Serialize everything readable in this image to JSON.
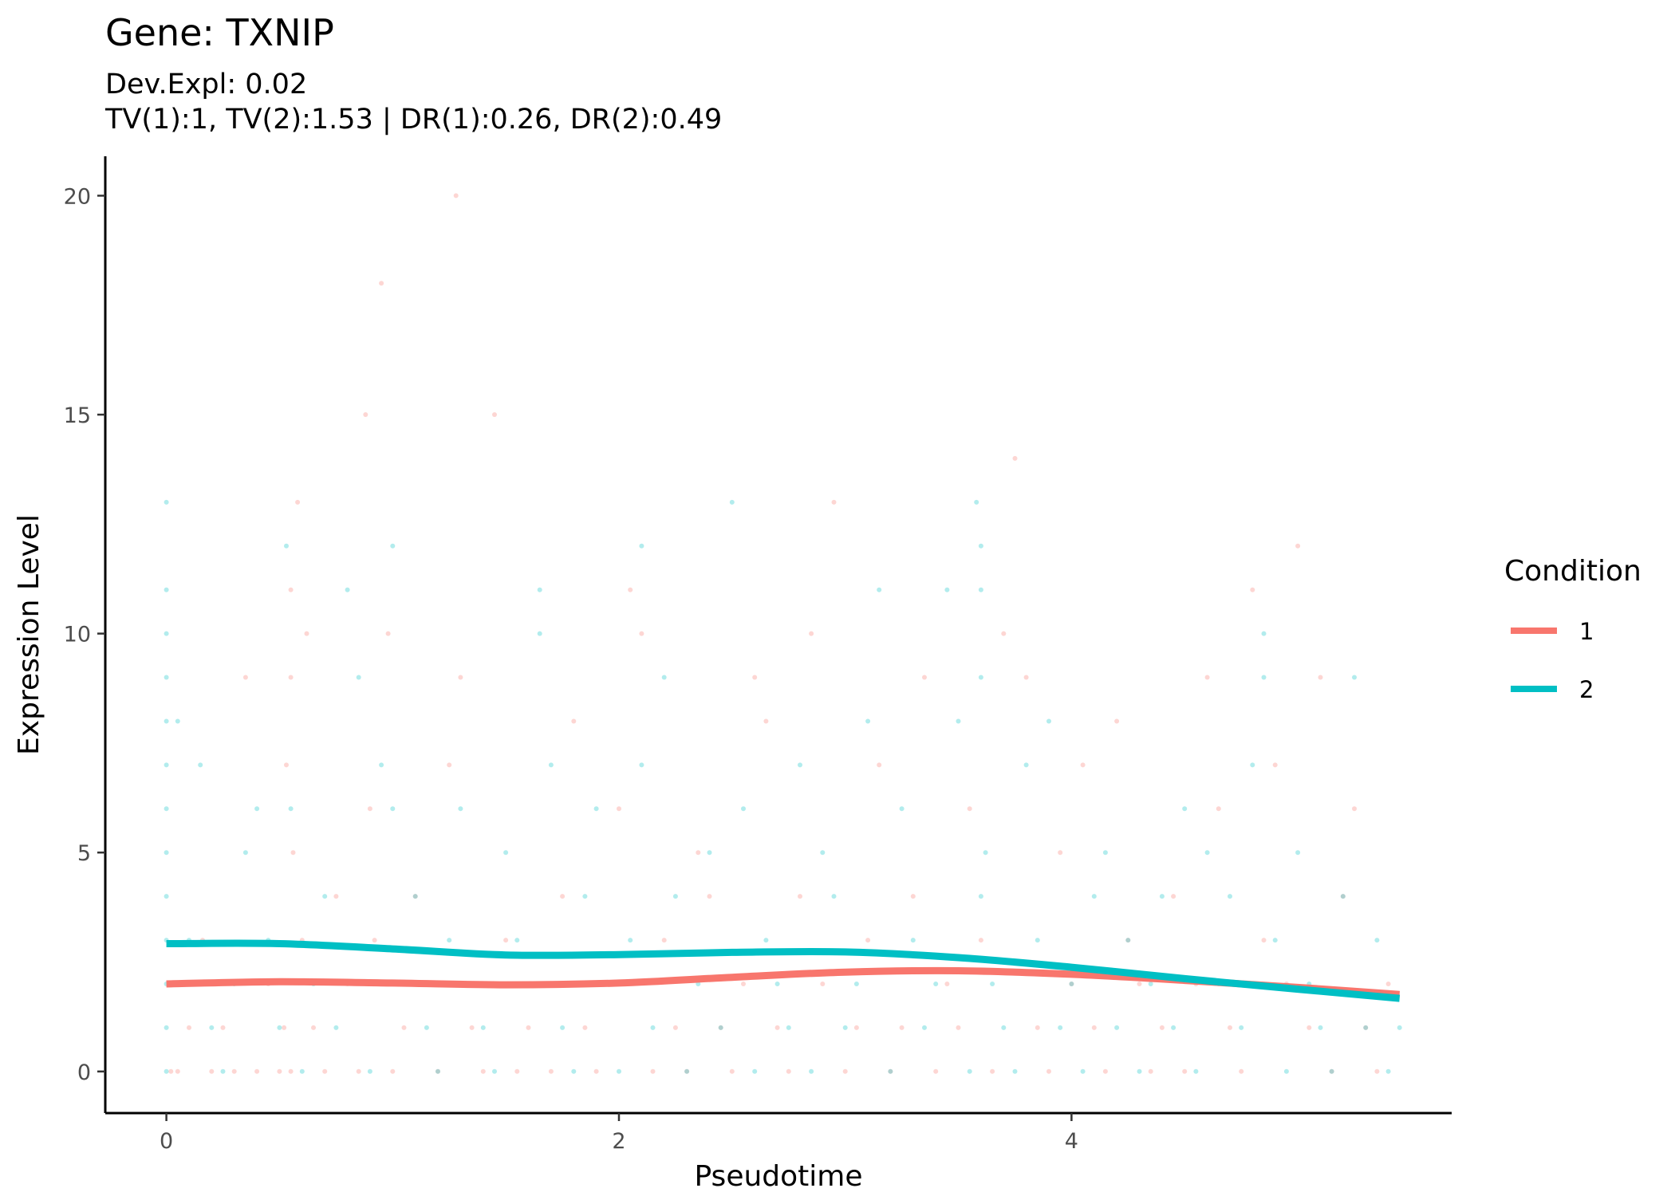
{
  "chart_data": {
    "type": "scatter",
    "title": "Gene: TXNIP",
    "subtitle_line1": "Dev.Expl: 0.02",
    "subtitle_line2": "TV(1):1, TV(2):1.53 | DR(1):0.26, DR(2):0.49",
    "xlabel": "Pseudotime",
    "ylabel": "Expression Level",
    "xlim": [
      -0.27,
      5.68
    ],
    "ylim": [
      -0.95,
      20.9
    ],
    "x_ticks": [
      0,
      2,
      4
    ],
    "y_ticks": [
      0,
      5,
      10,
      15,
      20
    ],
    "x_tick_labels": [
      "0",
      "2",
      "4"
    ],
    "y_tick_labels": [
      "0",
      "5",
      "10",
      "15",
      "20"
    ],
    "grid": false,
    "legend": {
      "title": "Condition",
      "position": "right",
      "entries": [
        {
          "label": "1",
          "color": "#F8766D"
        },
        {
          "label": "2",
          "color": "#00BFC4"
        }
      ]
    },
    "series": [
      {
        "name": "1",
        "color": "#F8766D",
        "fit_x": [
          0,
          0.5,
          1.0,
          1.5,
          2.0,
          2.5,
          3.0,
          3.5,
          4.0,
          4.5,
          5.0,
          5.45
        ],
        "fit_y": [
          2.0,
          2.05,
          2.02,
          1.98,
          2.02,
          2.15,
          2.27,
          2.3,
          2.22,
          2.08,
          1.92,
          1.76
        ],
        "points": [
          [
            0.02,
            0
          ],
          [
            0.05,
            0
          ],
          [
            0.1,
            1
          ],
          [
            0.13,
            2
          ],
          [
            0.16,
            3
          ],
          [
            0.2,
            0
          ],
          [
            0.25,
            1
          ],
          [
            0.3,
            0
          ],
          [
            0.35,
            9
          ],
          [
            0.4,
            0
          ],
          [
            0.45,
            2
          ],
          [
            0.5,
            0
          ],
          [
            0.52,
            1
          ],
          [
            0.53,
            7
          ],
          [
            0.55,
            11
          ],
          [
            0.55,
            9
          ],
          [
            0.55,
            0
          ],
          [
            0.56,
            5
          ],
          [
            0.58,
            13
          ],
          [
            0.6,
            3
          ],
          [
            0.62,
            10
          ],
          [
            0.65,
            1
          ],
          [
            0.7,
            0
          ],
          [
            0.75,
            4
          ],
          [
            0.8,
            2
          ],
          [
            0.85,
            0
          ],
          [
            0.88,
            15
          ],
          [
            0.9,
            6
          ],
          [
            0.92,
            3
          ],
          [
            0.95,
            18
          ],
          [
            0.98,
            10
          ],
          [
            1.0,
            0
          ],
          [
            1.05,
            1
          ],
          [
            1.1,
            4
          ],
          [
            1.15,
            2
          ],
          [
            1.2,
            0
          ],
          [
            1.25,
            7
          ],
          [
            1.28,
            20
          ],
          [
            1.3,
            9
          ],
          [
            1.35,
            1
          ],
          [
            1.4,
            0
          ],
          [
            1.45,
            15
          ],
          [
            1.5,
            3
          ],
          [
            1.55,
            0
          ],
          [
            1.6,
            1
          ],
          [
            1.65,
            2
          ],
          [
            1.7,
            0
          ],
          [
            1.75,
            4
          ],
          [
            1.8,
            8
          ],
          [
            1.85,
            1
          ],
          [
            1.9,
            0
          ],
          [
            1.95,
            2
          ],
          [
            2.0,
            6
          ],
          [
            2.05,
            11
          ],
          [
            2.1,
            10
          ],
          [
            2.15,
            0
          ],
          [
            2.2,
            3
          ],
          [
            2.25,
            1
          ],
          [
            2.3,
            0
          ],
          [
            2.35,
            5
          ],
          [
            2.4,
            4
          ],
          [
            2.45,
            1
          ],
          [
            2.5,
            0
          ],
          [
            2.55,
            2
          ],
          [
            2.6,
            9
          ],
          [
            2.65,
            8
          ],
          [
            2.7,
            1
          ],
          [
            2.75,
            0
          ],
          [
            2.8,
            4
          ],
          [
            2.85,
            10
          ],
          [
            2.9,
            2
          ],
          [
            2.95,
            13
          ],
          [
            3.0,
            0
          ],
          [
            3.05,
            1
          ],
          [
            3.1,
            3
          ],
          [
            3.15,
            7
          ],
          [
            3.2,
            0
          ],
          [
            3.25,
            1
          ],
          [
            3.3,
            4
          ],
          [
            3.35,
            9
          ],
          [
            3.4,
            0
          ],
          [
            3.45,
            2
          ],
          [
            3.5,
            1
          ],
          [
            3.55,
            6
          ],
          [
            3.6,
            3
          ],
          [
            3.65,
            0
          ],
          [
            3.7,
            10
          ],
          [
            3.75,
            14
          ],
          [
            3.8,
            9
          ],
          [
            3.85,
            1
          ],
          [
            3.9,
            0
          ],
          [
            3.95,
            5
          ],
          [
            4.0,
            2
          ],
          [
            4.05,
            7
          ],
          [
            4.1,
            1
          ],
          [
            4.15,
            0
          ],
          [
            4.2,
            8
          ],
          [
            4.25,
            3
          ],
          [
            4.3,
            2
          ],
          [
            4.35,
            0
          ],
          [
            4.4,
            1
          ],
          [
            4.45,
            4
          ],
          [
            4.5,
            0
          ],
          [
            4.55,
            2
          ],
          [
            4.6,
            9
          ],
          [
            4.65,
            6
          ],
          [
            4.7,
            1
          ],
          [
            4.75,
            0
          ],
          [
            4.8,
            11
          ],
          [
            4.85,
            3
          ],
          [
            4.9,
            7
          ],
          [
            4.95,
            2
          ],
          [
            5.0,
            12
          ],
          [
            5.05,
            1
          ],
          [
            5.1,
            9
          ],
          [
            5.15,
            0
          ],
          [
            5.2,
            4
          ],
          [
            5.25,
            6
          ],
          [
            5.3,
            1
          ],
          [
            5.35,
            0
          ],
          [
            5.4,
            2
          ]
        ]
      },
      {
        "name": "2",
        "color": "#00BFC4",
        "fit_x": [
          0,
          0.5,
          1.0,
          1.5,
          2.0,
          2.5,
          3.0,
          3.5,
          4.0,
          4.5,
          5.0,
          5.45
        ],
        "fit_y": [
          2.92,
          2.92,
          2.8,
          2.66,
          2.67,
          2.72,
          2.73,
          2.6,
          2.38,
          2.12,
          1.88,
          1.67
        ],
        "points": [
          [
            0.0,
            13
          ],
          [
            0.0,
            11
          ],
          [
            0.0,
            10
          ],
          [
            0.0,
            9
          ],
          [
            0.0,
            8
          ],
          [
            0.0,
            7
          ],
          [
            0.0,
            6
          ],
          [
            0.0,
            5
          ],
          [
            0.0,
            4
          ],
          [
            0.0,
            3
          ],
          [
            0.0,
            2
          ],
          [
            0.0,
            1
          ],
          [
            0.0,
            0
          ],
          [
            0.05,
            8
          ],
          [
            0.1,
            3
          ],
          [
            0.15,
            7
          ],
          [
            0.2,
            1
          ],
          [
            0.25,
            0
          ],
          [
            0.3,
            2
          ],
          [
            0.35,
            5
          ],
          [
            0.4,
            6
          ],
          [
            0.45,
            3
          ],
          [
            0.5,
            1
          ],
          [
            0.53,
            12
          ],
          [
            0.55,
            6
          ],
          [
            0.6,
            0
          ],
          [
            0.65,
            2
          ],
          [
            0.7,
            4
          ],
          [
            0.75,
            1
          ],
          [
            0.8,
            11
          ],
          [
            0.85,
            9
          ],
          [
            0.9,
            0
          ],
          [
            0.95,
            7
          ],
          [
            1.0,
            12
          ],
          [
            1.0,
            6
          ],
          [
            1.05,
            2
          ],
          [
            1.1,
            4
          ],
          [
            1.15,
            1
          ],
          [
            1.2,
            0
          ],
          [
            1.25,
            3
          ],
          [
            1.3,
            6
          ],
          [
            1.35,
            2
          ],
          [
            1.4,
            1
          ],
          [
            1.45,
            0
          ],
          [
            1.5,
            5
          ],
          [
            1.55,
            3
          ],
          [
            1.6,
            2
          ],
          [
            1.65,
            11
          ],
          [
            1.65,
            10
          ],
          [
            1.7,
            7
          ],
          [
            1.75,
            1
          ],
          [
            1.8,
            0
          ],
          [
            1.85,
            4
          ],
          [
            1.9,
            6
          ],
          [
            1.95,
            2
          ],
          [
            2.0,
            0
          ],
          [
            2.05,
            3
          ],
          [
            2.1,
            12
          ],
          [
            2.1,
            7
          ],
          [
            2.15,
            1
          ],
          [
            2.2,
            9
          ],
          [
            2.25,
            4
          ],
          [
            2.3,
            0
          ],
          [
            2.35,
            2
          ],
          [
            2.4,
            5
          ],
          [
            2.45,
            1
          ],
          [
            2.5,
            13
          ],
          [
            2.55,
            6
          ],
          [
            2.6,
            0
          ],
          [
            2.65,
            3
          ],
          [
            2.7,
            2
          ],
          [
            2.75,
            1
          ],
          [
            2.8,
            7
          ],
          [
            2.85,
            0
          ],
          [
            2.9,
            5
          ],
          [
            2.95,
            4
          ],
          [
            3.0,
            1
          ],
          [
            3.05,
            2
          ],
          [
            3.1,
            8
          ],
          [
            3.15,
            11
          ],
          [
            3.2,
            0
          ],
          [
            3.25,
            6
          ],
          [
            3.3,
            3
          ],
          [
            3.35,
            1
          ],
          [
            3.4,
            2
          ],
          [
            3.45,
            11
          ],
          [
            3.5,
            8
          ],
          [
            3.55,
            0
          ],
          [
            3.58,
            13
          ],
          [
            3.6,
            12
          ],
          [
            3.6,
            11
          ],
          [
            3.6,
            9
          ],
          [
            3.6,
            4
          ],
          [
            3.62,
            5
          ],
          [
            3.65,
            2
          ],
          [
            3.7,
            1
          ],
          [
            3.75,
            0
          ],
          [
            3.8,
            7
          ],
          [
            3.85,
            3
          ],
          [
            3.9,
            8
          ],
          [
            3.95,
            1
          ],
          [
            4.0,
            2
          ],
          [
            4.05,
            0
          ],
          [
            4.1,
            4
          ],
          [
            4.15,
            5
          ],
          [
            4.2,
            1
          ],
          [
            4.25,
            3
          ],
          [
            4.3,
            0
          ],
          [
            4.35,
            2
          ],
          [
            4.4,
            4
          ],
          [
            4.45,
            1
          ],
          [
            4.5,
            6
          ],
          [
            4.55,
            0
          ],
          [
            4.6,
            5
          ],
          [
            4.65,
            2
          ],
          [
            4.7,
            4
          ],
          [
            4.75,
            1
          ],
          [
            4.8,
            7
          ],
          [
            4.85,
            10
          ],
          [
            4.85,
            9
          ],
          [
            4.9,
            3
          ],
          [
            4.95,
            0
          ],
          [
            5.0,
            5
          ],
          [
            5.05,
            2
          ],
          [
            5.1,
            1
          ],
          [
            5.15,
            0
          ],
          [
            5.2,
            4
          ],
          [
            5.25,
            9
          ],
          [
            5.3,
            1
          ],
          [
            5.35,
            3
          ],
          [
            5.4,
            0
          ],
          [
            5.45,
            1
          ]
        ]
      }
    ]
  }
}
